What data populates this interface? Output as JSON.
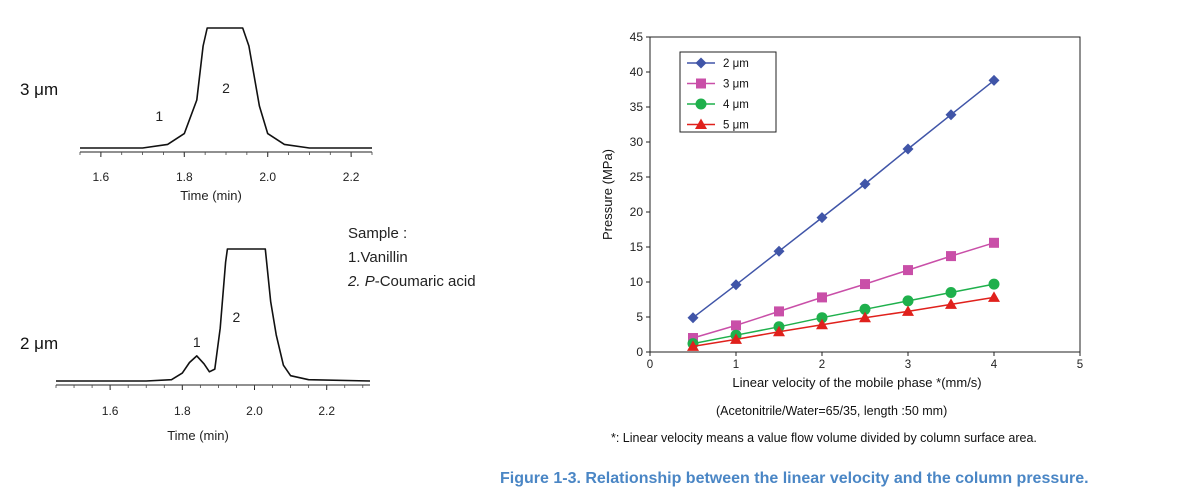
{
  "sample": {
    "title": "Sample :",
    "item1_num": "1.",
    "item1_name": "Vanillin",
    "item2_num": "2.",
    "item2_prefix": "P",
    "item2_rest": "-Coumaric acid"
  },
  "notes": {
    "conditions": "(Acetonitrile/Water=65/35, length :50 mm)",
    "definition": "*: Linear velocity means a value flow volume divided by column surface area."
  },
  "caption": "Figure 1-3. Relationship between the linear velocity and the column pressure.",
  "chart_data": [
    {
      "type": "line",
      "subtype": "chromatogram",
      "side_label": "3 μm",
      "xlabel": "Time (min)",
      "xlim": [
        1.55,
        2.25
      ],
      "xticks": [
        1.6,
        1.8,
        2.0,
        2.2
      ],
      "xtick_labels": [
        "1.6",
        "1.8",
        "2.0",
        "2.2"
      ],
      "peak_labels": [
        {
          "text": "1",
          "x": 1.74
        },
        {
          "text": "2",
          "x": 1.9
        }
      ],
      "series": [
        {
          "x": [
            1.55,
            1.7,
            1.76,
            1.8,
            1.83,
            1.845,
            1.855,
            1.94,
            1.955,
            1.97,
            1.98,
            2.0,
            2.04,
            2.1,
            2.25
          ],
          "y": [
            0,
            0,
            0.03,
            0.12,
            0.4,
            0.85,
            1,
            1,
            0.85,
            0.55,
            0.35,
            0.12,
            0.03,
            0,
            0
          ]
        }
      ],
      "ylim": [
        0,
        1
      ],
      "clipped_at_top": true
    },
    {
      "type": "line",
      "subtype": "chromatogram",
      "side_label": "2 μm",
      "xlabel": "Time (min)",
      "xlim": [
        1.45,
        2.32
      ],
      "xticks": [
        1.6,
        1.8,
        2.0,
        2.2
      ],
      "xtick_labels": [
        "1.6",
        "1.8",
        "2.0",
        "2.2"
      ],
      "peak_labels": [
        {
          "text": "1",
          "x": 1.84
        },
        {
          "text": "2",
          "x": 1.95
        }
      ],
      "series": [
        {
          "x": [
            1.45,
            1.7,
            1.77,
            1.8,
            1.82,
            1.84,
            1.86,
            1.875,
            1.89,
            1.905,
            1.92,
            1.925,
            2.03,
            2.045,
            2.06,
            2.08,
            2.1,
            2.15,
            2.32
          ],
          "y": [
            0,
            0,
            0.01,
            0.06,
            0.14,
            0.19,
            0.13,
            0.07,
            0.09,
            0.4,
            0.9,
            1,
            1,
            0.6,
            0.35,
            0.12,
            0.04,
            0.01,
            0
          ]
        }
      ],
      "ylim": [
        0,
        1
      ],
      "clipped_at_top": true
    },
    {
      "type": "line",
      "xlabel": "Linear velocity of the mobile phase *(mm/s)",
      "ylabel": "Pressure (MPa)",
      "xlim": [
        0,
        5
      ],
      "ylim": [
        0,
        45
      ],
      "xticks": [
        0,
        1,
        2,
        3,
        4,
        5
      ],
      "xtick_labels": [
        "0",
        "1",
        "2",
        "3",
        "4",
        "5"
      ],
      "yticks": [
        0,
        5,
        10,
        15,
        20,
        25,
        30,
        35,
        40,
        45
      ],
      "ytick_labels": [
        "0",
        "5",
        "10",
        "15",
        "20",
        "25",
        "30",
        "35",
        "40",
        "45"
      ],
      "grid": false,
      "legend_position": "top-left",
      "x": [
        0.5,
        1.0,
        1.5,
        2.0,
        2.5,
        3.0,
        3.5,
        4.0
      ],
      "series": [
        {
          "name": "2 μm",
          "marker": "diamond",
          "color": "#4055a8",
          "values": [
            4.9,
            9.6,
            14.4,
            19.2,
            24.0,
            29.0,
            33.9,
            38.8
          ]
        },
        {
          "name": "3 μm",
          "marker": "square",
          "color": "#c94fa8",
          "values": [
            2.0,
            3.8,
            5.8,
            7.8,
            9.7,
            11.7,
            13.7,
            15.6
          ]
        },
        {
          "name": "4 μm",
          "marker": "circle",
          "color": "#1fb04c",
          "values": [
            1.2,
            2.4,
            3.6,
            4.9,
            6.1,
            7.3,
            8.5,
            9.7
          ]
        },
        {
          "name": "5 μm",
          "marker": "triangle",
          "color": "#e0211c",
          "values": [
            0.8,
            1.8,
            2.9,
            3.9,
            4.9,
            5.8,
            6.8,
            7.8
          ]
        }
      ]
    }
  ]
}
